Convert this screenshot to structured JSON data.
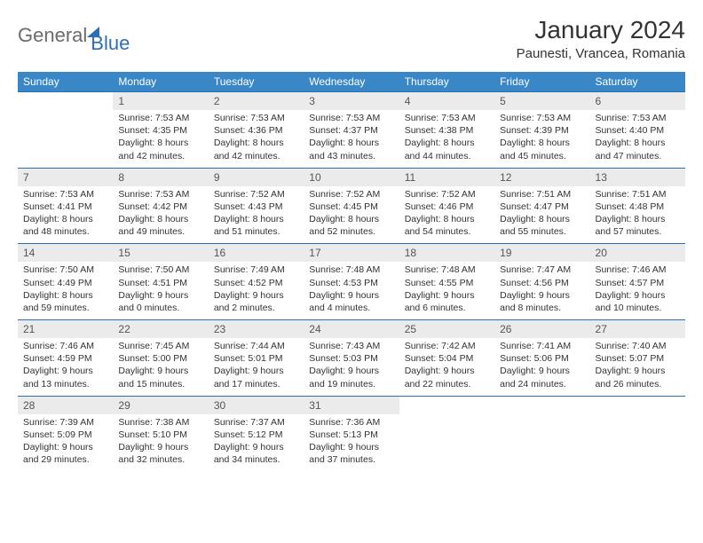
{
  "brand": {
    "part1": "General",
    "part2": "Blue"
  },
  "title": "January 2024",
  "location": "Paunesti, Vrancea, Romania",
  "colors": {
    "header_bg": "#3a87c7",
    "accent": "#2d6fb5",
    "daynum_bg": "#ebebeb",
    "text": "#333333",
    "logo_gray": "#6b6b6b"
  },
  "day_headers": [
    "Sunday",
    "Monday",
    "Tuesday",
    "Wednesday",
    "Thursday",
    "Friday",
    "Saturday"
  ],
  "weeks": [
    [
      null,
      {
        "n": "1",
        "sr": "7:53 AM",
        "ss": "4:35 PM",
        "dl": "8 hours and 42 minutes."
      },
      {
        "n": "2",
        "sr": "7:53 AM",
        "ss": "4:36 PM",
        "dl": "8 hours and 42 minutes."
      },
      {
        "n": "3",
        "sr": "7:53 AM",
        "ss": "4:37 PM",
        "dl": "8 hours and 43 minutes."
      },
      {
        "n": "4",
        "sr": "7:53 AM",
        "ss": "4:38 PM",
        "dl": "8 hours and 44 minutes."
      },
      {
        "n": "5",
        "sr": "7:53 AM",
        "ss": "4:39 PM",
        "dl": "8 hours and 45 minutes."
      },
      {
        "n": "6",
        "sr": "7:53 AM",
        "ss": "4:40 PM",
        "dl": "8 hours and 47 minutes."
      }
    ],
    [
      {
        "n": "7",
        "sr": "7:53 AM",
        "ss": "4:41 PM",
        "dl": "8 hours and 48 minutes."
      },
      {
        "n": "8",
        "sr": "7:53 AM",
        "ss": "4:42 PM",
        "dl": "8 hours and 49 minutes."
      },
      {
        "n": "9",
        "sr": "7:52 AM",
        "ss": "4:43 PM",
        "dl": "8 hours and 51 minutes."
      },
      {
        "n": "10",
        "sr": "7:52 AM",
        "ss": "4:45 PM",
        "dl": "8 hours and 52 minutes."
      },
      {
        "n": "11",
        "sr": "7:52 AM",
        "ss": "4:46 PM",
        "dl": "8 hours and 54 minutes."
      },
      {
        "n": "12",
        "sr": "7:51 AM",
        "ss": "4:47 PM",
        "dl": "8 hours and 55 minutes."
      },
      {
        "n": "13",
        "sr": "7:51 AM",
        "ss": "4:48 PM",
        "dl": "8 hours and 57 minutes."
      }
    ],
    [
      {
        "n": "14",
        "sr": "7:50 AM",
        "ss": "4:49 PM",
        "dl": "8 hours and 59 minutes."
      },
      {
        "n": "15",
        "sr": "7:50 AM",
        "ss": "4:51 PM",
        "dl": "9 hours and 0 minutes."
      },
      {
        "n": "16",
        "sr": "7:49 AM",
        "ss": "4:52 PM",
        "dl": "9 hours and 2 minutes."
      },
      {
        "n": "17",
        "sr": "7:48 AM",
        "ss": "4:53 PM",
        "dl": "9 hours and 4 minutes."
      },
      {
        "n": "18",
        "sr": "7:48 AM",
        "ss": "4:55 PM",
        "dl": "9 hours and 6 minutes."
      },
      {
        "n": "19",
        "sr": "7:47 AM",
        "ss": "4:56 PM",
        "dl": "9 hours and 8 minutes."
      },
      {
        "n": "20",
        "sr": "7:46 AM",
        "ss": "4:57 PM",
        "dl": "9 hours and 10 minutes."
      }
    ],
    [
      {
        "n": "21",
        "sr": "7:46 AM",
        "ss": "4:59 PM",
        "dl": "9 hours and 13 minutes."
      },
      {
        "n": "22",
        "sr": "7:45 AM",
        "ss": "5:00 PM",
        "dl": "9 hours and 15 minutes."
      },
      {
        "n": "23",
        "sr": "7:44 AM",
        "ss": "5:01 PM",
        "dl": "9 hours and 17 minutes."
      },
      {
        "n": "24",
        "sr": "7:43 AM",
        "ss": "5:03 PM",
        "dl": "9 hours and 19 minutes."
      },
      {
        "n": "25",
        "sr": "7:42 AM",
        "ss": "5:04 PM",
        "dl": "9 hours and 22 minutes."
      },
      {
        "n": "26",
        "sr": "7:41 AM",
        "ss": "5:06 PM",
        "dl": "9 hours and 24 minutes."
      },
      {
        "n": "27",
        "sr": "7:40 AM",
        "ss": "5:07 PM",
        "dl": "9 hours and 26 minutes."
      }
    ],
    [
      {
        "n": "28",
        "sr": "7:39 AM",
        "ss": "5:09 PM",
        "dl": "9 hours and 29 minutes."
      },
      {
        "n": "29",
        "sr": "7:38 AM",
        "ss": "5:10 PM",
        "dl": "9 hours and 32 minutes."
      },
      {
        "n": "30",
        "sr": "7:37 AM",
        "ss": "5:12 PM",
        "dl": "9 hours and 34 minutes."
      },
      {
        "n": "31",
        "sr": "7:36 AM",
        "ss": "5:13 PM",
        "dl": "9 hours and 37 minutes."
      },
      null,
      null,
      null
    ]
  ],
  "labels": {
    "sunrise": "Sunrise:",
    "sunset": "Sunset:",
    "daylight": "Daylight:"
  }
}
